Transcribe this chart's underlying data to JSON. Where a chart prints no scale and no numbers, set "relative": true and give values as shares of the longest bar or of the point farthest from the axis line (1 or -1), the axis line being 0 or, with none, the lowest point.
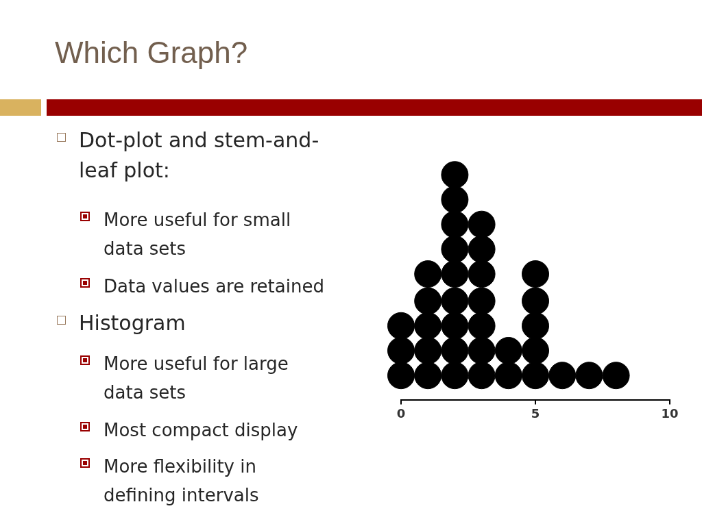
{
  "chart_data": {
    "type": "scatter",
    "title": "Which Graph?",
    "annotations": [
      "Dot-plot and stem-and-leaf plot:",
      "More useful for small data sets",
      "Data values are retained",
      "Histogram",
      "More useful for large data sets",
      "Most compact display",
      "More flexibility in defining intervals"
    ],
    "x": [
      0,
      0,
      0,
      1,
      1,
      1,
      1,
      1,
      2,
      2,
      2,
      2,
      2,
      2,
      2,
      2,
      2,
      3,
      3,
      3,
      3,
      3,
      3,
      3,
      4,
      4,
      5,
      5,
      5,
      5,
      5,
      6,
      7,
      8
    ],
    "values": [
      0.11,
      0.22,
      0.33,
      0.11,
      0.22,
      0.33,
      0.44,
      0.56,
      0.11,
      0.22,
      0.33,
      0.44,
      0.56,
      0.67,
      0.78,
      0.89,
      1,
      0.11,
      0.22,
      0.33,
      0.44,
      0.56,
      0.67,
      0.78,
      0.11,
      0.22,
      0.11,
      0.22,
      0.33,
      0.44,
      0.56,
      0.11,
      0.11,
      0.11
    ],
    "relative": true,
    "color": "#000000",
    "marker": "circle",
    "xlim": [
      0,
      10
    ],
    "xticks": [
      0,
      5,
      10
    ],
    "tick_labels": "x",
    "grid": false,
    "legend": false
  }
}
